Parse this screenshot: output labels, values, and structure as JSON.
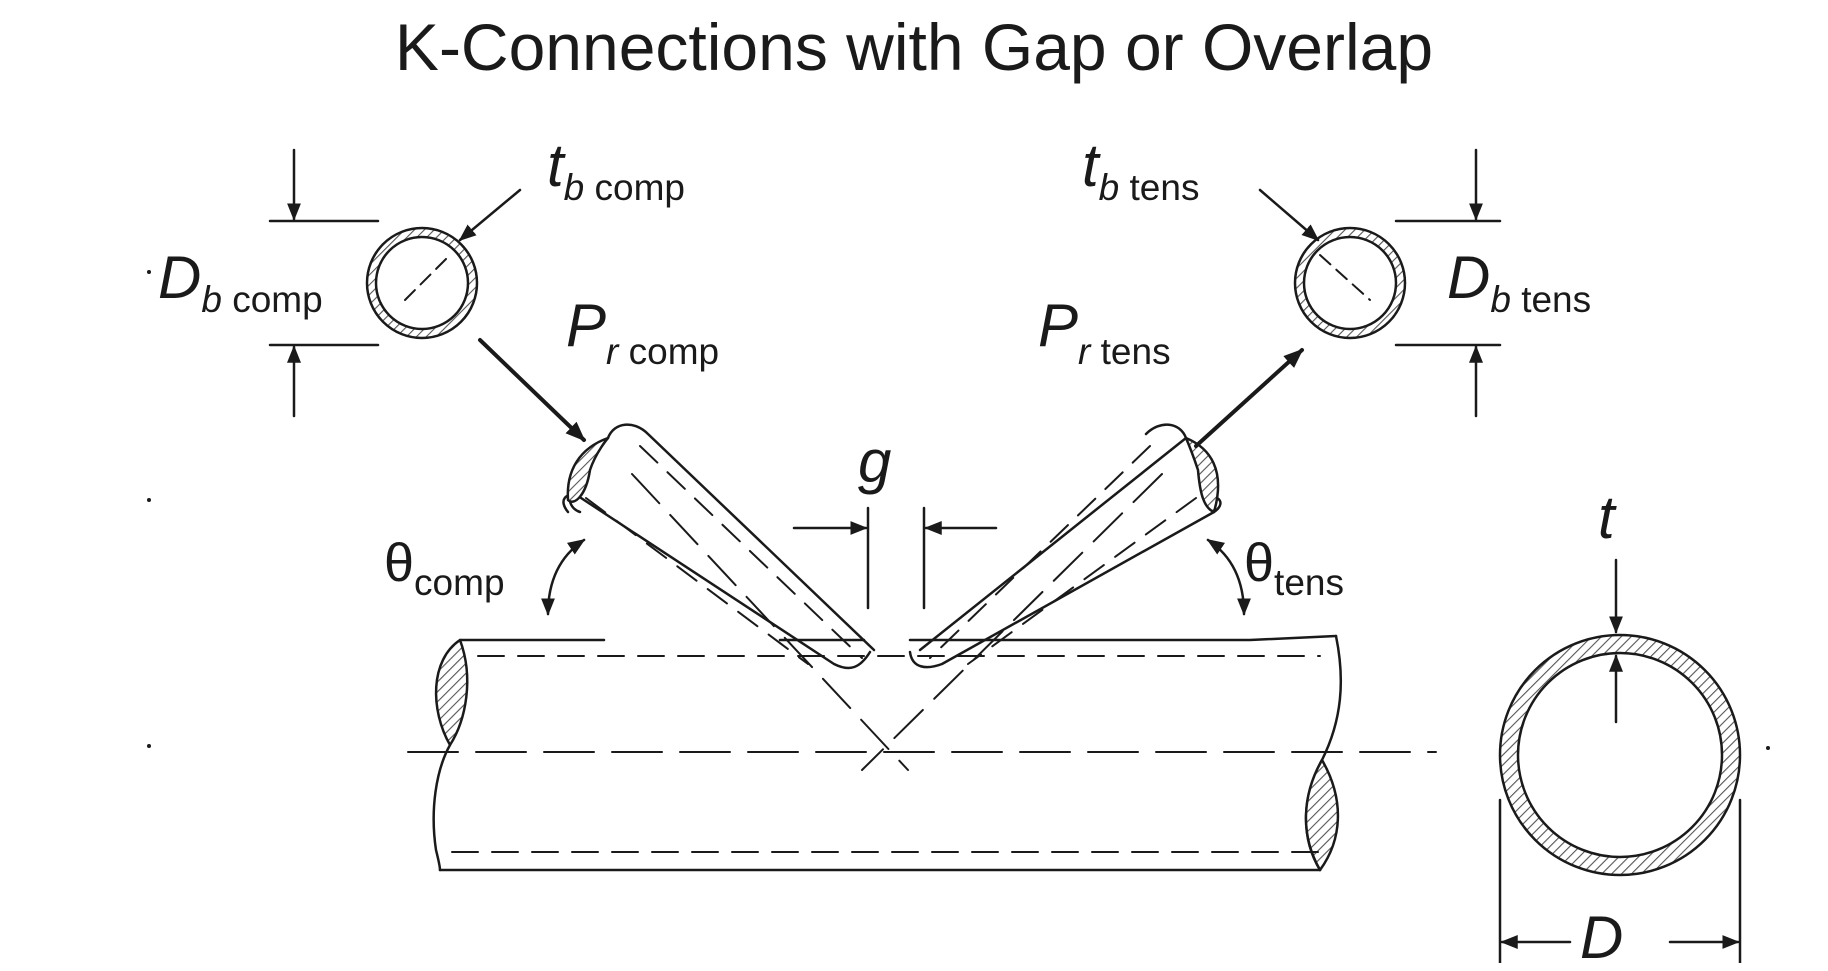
{
  "title": "K-Connections with Gap or Overlap",
  "labels": {
    "tb_comp": {
      "sym": "t",
      "sub_b": "b",
      "sub_rest": " comp"
    },
    "tb_tens": {
      "sym": "t",
      "sub_b": "b",
      "sub_rest": " tens"
    },
    "Db_comp": {
      "sym": "D",
      "sub_b": "b",
      "sub_rest": " comp"
    },
    "Db_tens": {
      "sym": "D",
      "sub_b": "b",
      "sub_rest": " tens"
    },
    "Pr_comp": {
      "sym": "P",
      "sub_r": "r",
      "sub_rest": " comp"
    },
    "Pr_tens": {
      "sym": "P",
      "sub_r": "r",
      "sub_rest": " tens"
    },
    "g": "g",
    "theta_comp": {
      "sym": "θ",
      "sub": "comp"
    },
    "theta_tens": {
      "sym": "θ",
      "sub": "tens"
    },
    "t": "t",
    "D": "D"
  },
  "colors": {
    "line": "#1a1a1a",
    "hatch": "#555555"
  }
}
